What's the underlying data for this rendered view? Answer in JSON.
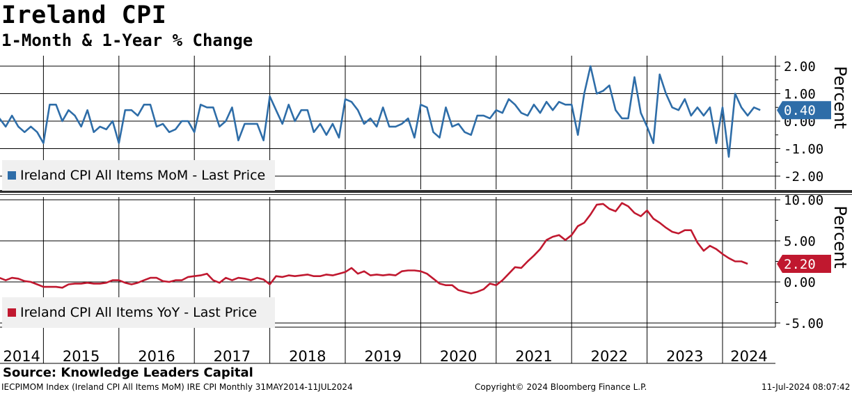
{
  "header": {
    "title": "Ireland CPI",
    "subtitle": "1-Month & 1-Year % Change"
  },
  "footer": {
    "source": "Source: Knowledge Leaders Capital",
    "ticker_info": "IECPIMOM Index (Ireland CPI All Items MoM) IRE CPI  Monthly 31MAY2014-11JUL2024",
    "copyright": "Copyright© 2024 Bloomberg Finance L.P.",
    "timestamp": "11-Jul-2024 08:07:42"
  },
  "colors": {
    "mom_series": "#2e6da8",
    "yoy_series": "#c0182f"
  },
  "chart_data": [
    {
      "type": "line",
      "ylabel": "Percent",
      "ylim": [
        -2.5,
        2.2
      ],
      "yticks": [
        "2.00",
        "1.00",
        "0.00",
        "-1.00",
        "-2.00"
      ],
      "grid": true,
      "legend_position": "bottom-left",
      "series": [
        {
          "name": "Ireland CPI All Items MoM - Last Price",
          "last_value_label": "0.40",
          "start": "2014-05",
          "values": [
            0.0,
            0.1,
            -0.2,
            0.2,
            -0.2,
            -0.4,
            -0.2,
            -0.4,
            -0.8,
            0.6,
            0.6,
            0.0,
            0.4,
            0.2,
            -0.2,
            0.4,
            -0.4,
            -0.2,
            -0.3,
            0.0,
            -0.8,
            0.4,
            0.4,
            0.2,
            0.6,
            0.6,
            -0.2,
            -0.1,
            -0.4,
            -0.3,
            0.0,
            0.0,
            -0.4,
            0.6,
            0.5,
            0.5,
            -0.2,
            0.0,
            0.5,
            -0.7,
            -0.1,
            -0.1,
            -0.1,
            -0.7,
            0.9,
            0.4,
            -0.1,
            0.6,
            0.0,
            0.4,
            0.4,
            -0.4,
            -0.1,
            -0.5,
            -0.1,
            -0.6,
            0.8,
            0.7,
            0.4,
            -0.1,
            0.1,
            -0.2,
            0.5,
            -0.2,
            -0.2,
            -0.1,
            0.1,
            -0.6,
            0.6,
            0.5,
            -0.4,
            -0.6,
            0.5,
            -0.2,
            -0.1,
            -0.4,
            -0.5,
            0.2,
            0.2,
            0.1,
            0.4,
            0.3,
            0.8,
            0.6,
            0.3,
            0.2,
            0.6,
            0.3,
            0.7,
            0.4,
            0.7,
            0.6,
            0.6,
            -0.5,
            1.0,
            2.0,
            1.0,
            1.1,
            1.3,
            0.4,
            0.1,
            0.1,
            1.6,
            0.3,
            -0.2,
            -0.8,
            1.7,
            1.0,
            0.5,
            0.4,
            0.8,
            0.2,
            0.5,
            0.2,
            0.5,
            -0.8,
            0.5,
            -1.3,
            1.0,
            0.5,
            0.2,
            0.5,
            0.4
          ]
        }
      ]
    },
    {
      "type": "line",
      "ylabel": "Percent",
      "ylim": [
        -6.0,
        10.5
      ],
      "yticks": [
        "10.00",
        "5.00",
        "0.00",
        "-5.00"
      ],
      "grid": true,
      "legend_position": "bottom-left",
      "series": [
        {
          "name": "Ireland CPI All Items YoY - Last Price",
          "last_value_label": "2.20",
          "start": "2014-05",
          "values": [
            0.3,
            0.5,
            0.2,
            0.5,
            0.4,
            0.1,
            0.0,
            -0.3,
            -0.6,
            -0.6,
            -0.6,
            -0.7,
            -0.3,
            -0.2,
            -0.2,
            -0.1,
            -0.2,
            -0.2,
            -0.1,
            0.2,
            0.2,
            -0.1,
            -0.3,
            -0.1,
            0.2,
            0.5,
            0.5,
            0.1,
            0.0,
            0.2,
            0.2,
            0.6,
            0.7,
            0.8,
            1.0,
            0.2,
            -0.1,
            0.5,
            0.2,
            0.5,
            0.4,
            0.2,
            0.5,
            0.3,
            -0.3,
            0.7,
            0.6,
            0.8,
            0.7,
            0.8,
            0.9,
            0.7,
            0.7,
            0.9,
            0.8,
            1.0,
            1.2,
            1.7,
            1.0,
            1.3,
            0.8,
            0.9,
            0.8,
            0.9,
            0.8,
            1.3,
            1.4,
            1.4,
            1.3,
            1.0,
            0.4,
            -0.2,
            -0.4,
            -0.4,
            -1.0,
            -1.2,
            -1.4,
            -1.2,
            -0.9,
            -0.2,
            -0.4,
            0.2,
            1.0,
            1.8,
            1.7,
            2.5,
            3.2,
            4.0,
            5.1,
            5.5,
            5.7,
            5.1,
            5.7,
            6.8,
            7.2,
            8.2,
            9.4,
            9.5,
            8.9,
            8.6,
            9.6,
            9.2,
            8.4,
            8.0,
            8.7,
            7.7,
            7.2,
            6.6,
            6.1,
            5.9,
            6.3,
            6.3,
            4.8,
            3.8,
            4.4,
            4.0,
            3.4,
            2.9,
            2.5,
            2.5,
            2.2
          ]
        }
      ]
    }
  ],
  "xaxis": {
    "labels": [
      "2014",
      "2015",
      "2016",
      "2017",
      "2018",
      "2019",
      "2020",
      "2021",
      "2022",
      "2023",
      "2024"
    ]
  }
}
